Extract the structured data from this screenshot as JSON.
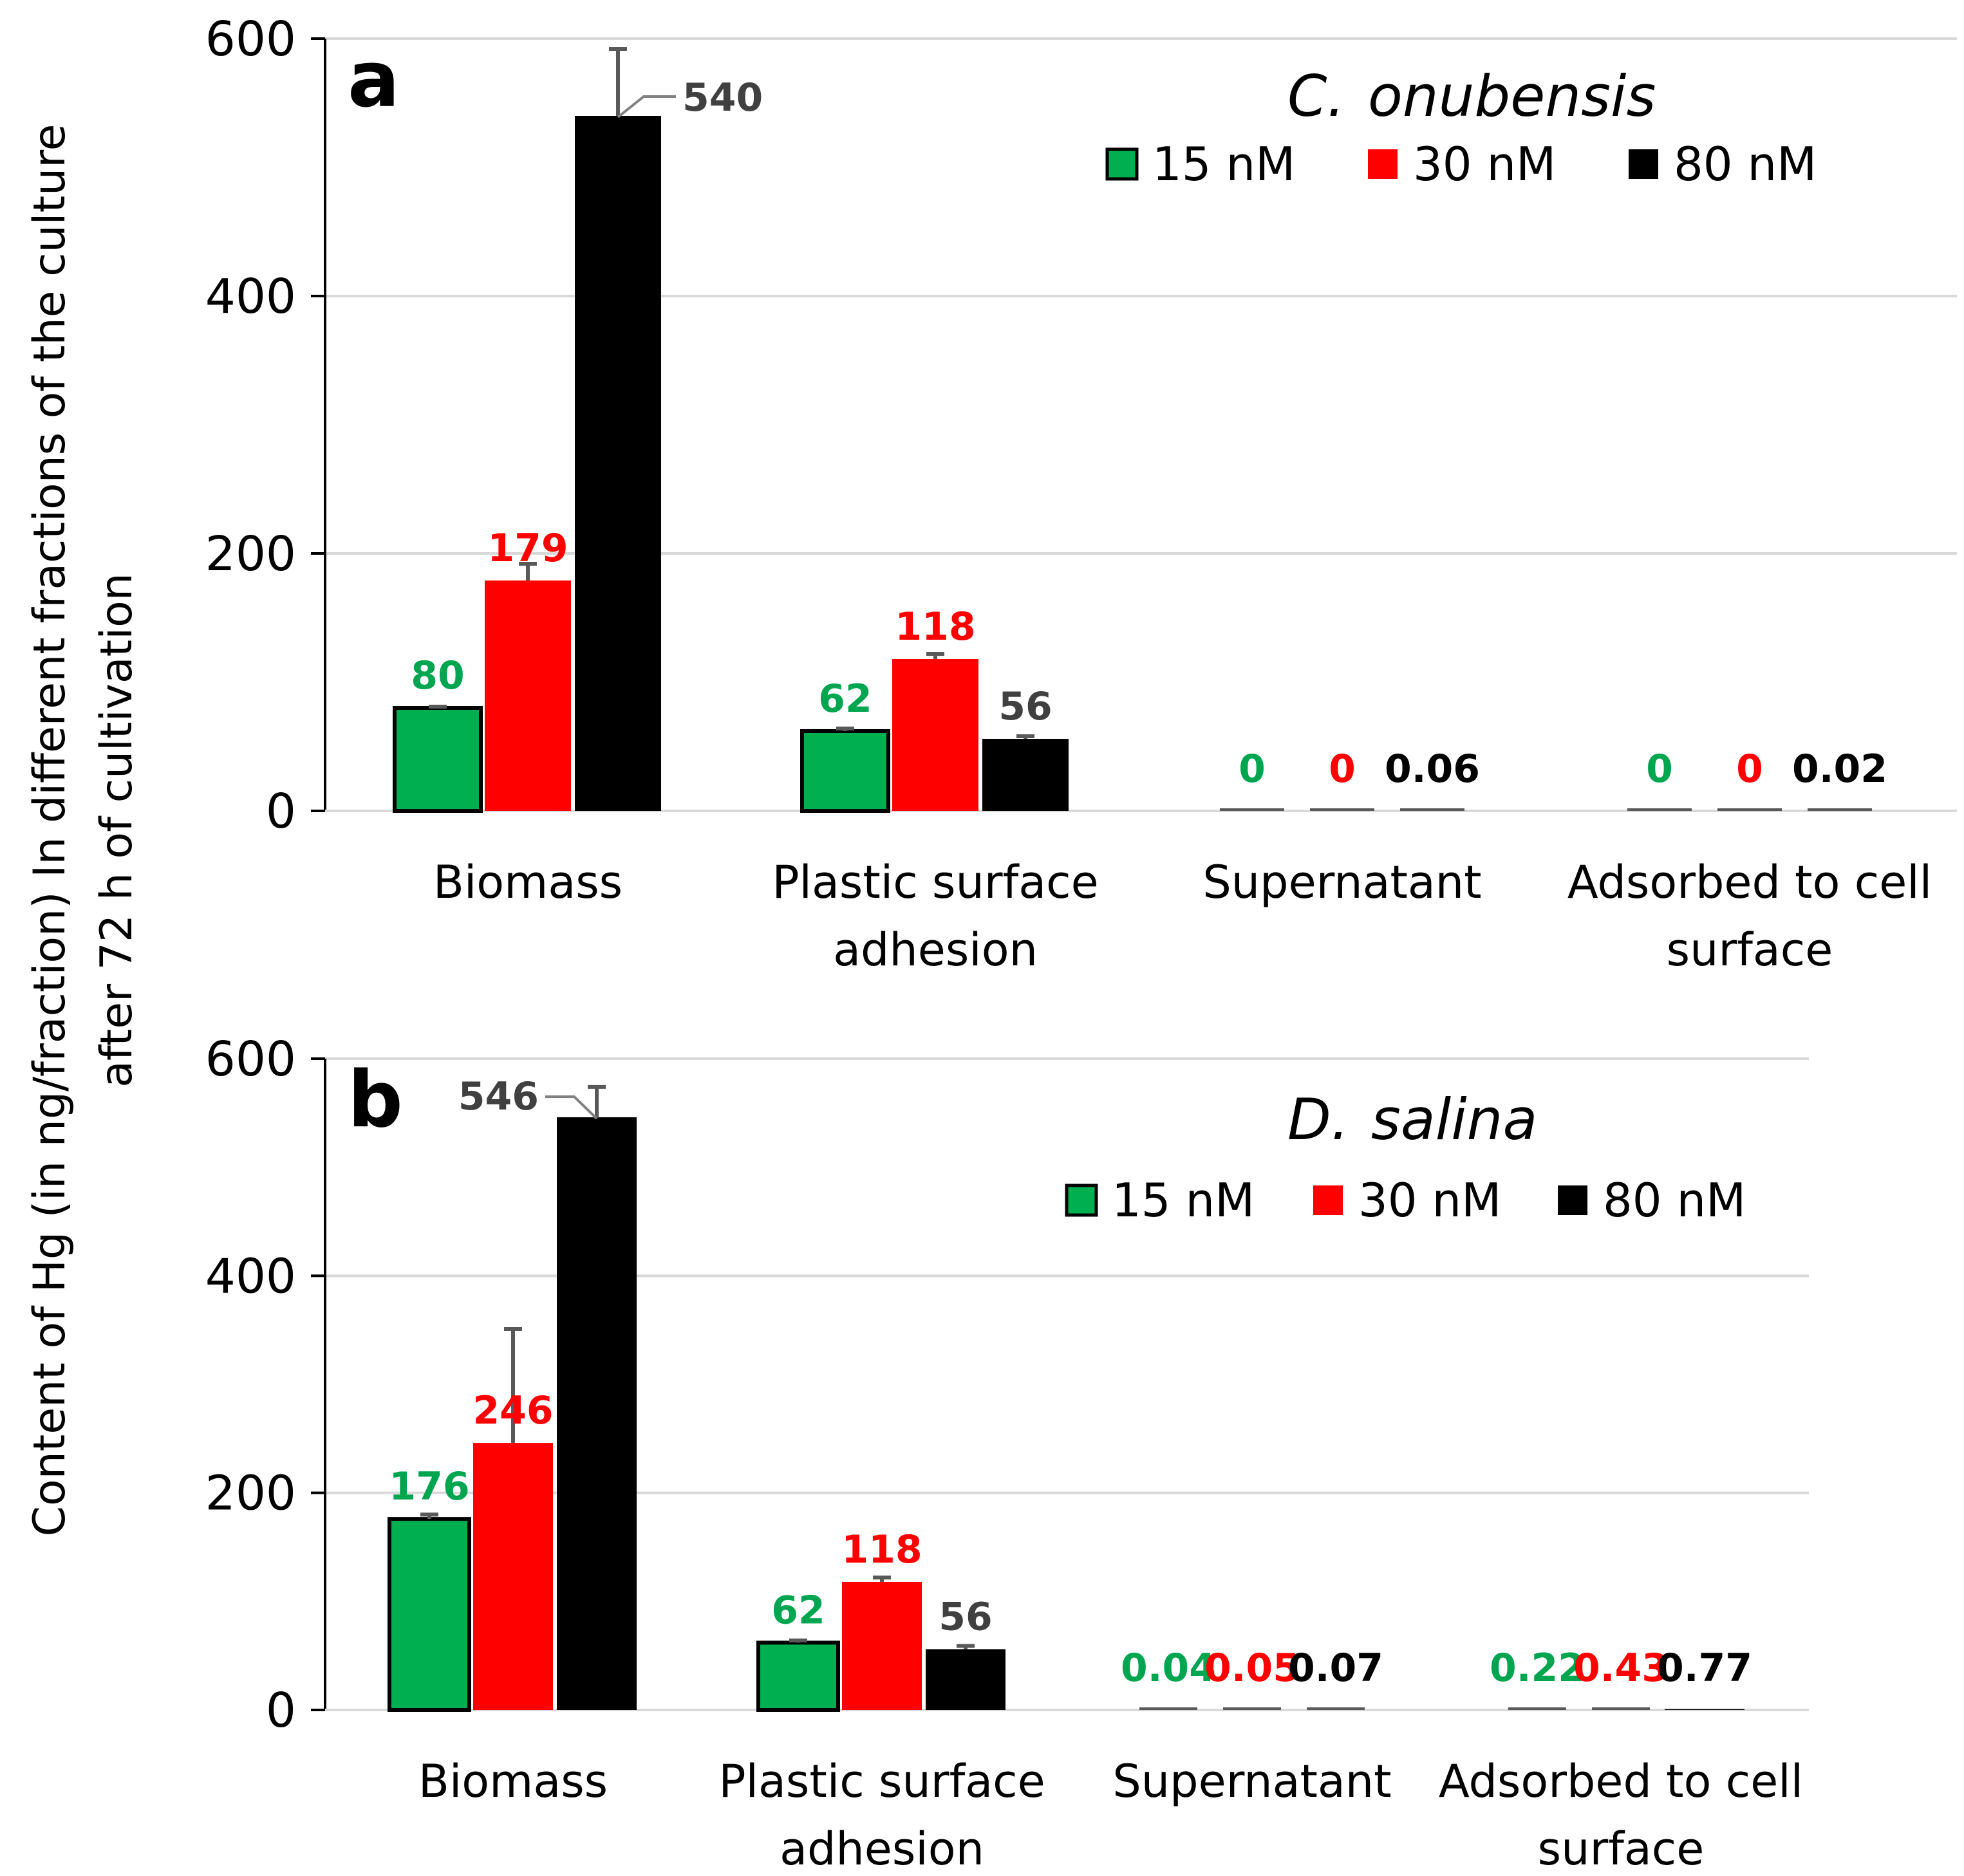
{
  "figure": {
    "ylabel_line1": "Content of Hg (in ng/fraction) In different fractions of the culture",
    "ylabel_line2": "after 72 h of cultivation"
  },
  "colors": {
    "green": "#00B050",
    "red": "#FF0000",
    "black": "#000000",
    "green_label": "#00A550",
    "dark_label": "#404040",
    "grid": "#D9D9D9"
  },
  "chart_data": [
    {
      "type": "bar",
      "panel": "a",
      "title": "C. onubensis",
      "title_genus": "C.",
      "title_species": "onubensis",
      "ylim": [
        0,
        600
      ],
      "yticks": [
        "0",
        "200",
        "400",
        "600"
      ],
      "categories": [
        [
          "Biomass"
        ],
        [
          "Plastic surface",
          "adhesion"
        ],
        [
          "Supernatant"
        ],
        [
          "Adsorbed to cell",
          "surface"
        ]
      ],
      "series": [
        {
          "name": "15 nM",
          "color": "green",
          "values": [
            80,
            62,
            0,
            0
          ],
          "labels": [
            "80",
            "62",
            "0",
            "0"
          ],
          "errors": [
            1,
            2,
            0,
            0
          ]
        },
        {
          "name": "30 nM",
          "color": "red",
          "values": [
            179,
            118,
            0,
            0
          ],
          "labels": [
            "179",
            "118",
            "0",
            "0"
          ],
          "errors": [
            13,
            4,
            0,
            0
          ]
        },
        {
          "name": "80 nM",
          "color": "black",
          "values": [
            540,
            56,
            0.06,
            0.02
          ],
          "labels": [
            "540",
            "56",
            "0.06",
            "0.02"
          ],
          "errors": [
            52,
            2,
            0,
            0
          ]
        }
      ]
    },
    {
      "type": "bar",
      "panel": "b",
      "title": "D. salina",
      "title_genus": "D.",
      "title_species": "salina",
      "ylim": [
        0,
        600
      ],
      "yticks": [
        "0",
        "200",
        "400",
        "600"
      ],
      "categories": [
        [
          "Biomass"
        ],
        [
          "Plastic surface",
          "adhesion"
        ],
        [
          "Supernatant"
        ],
        [
          "Adsorbed to cell",
          "surface"
        ]
      ],
      "series": [
        {
          "name": "15 nM",
          "color": "green",
          "values": [
            176,
            62,
            0.04,
            0.22
          ],
          "labels": [
            "176",
            "62",
            "0.04",
            "0.22"
          ],
          "errors": [
            4,
            2,
            0,
            0
          ]
        },
        {
          "name": "30 nM",
          "color": "red",
          "values": [
            246,
            118,
            0.05,
            0.43
          ],
          "labels": [
            "246",
            "118",
            "0.05",
            "0.43"
          ],
          "errors": [
            105,
            4,
            0,
            0
          ]
        },
        {
          "name": "80 nM",
          "color": "black",
          "values": [
            546,
            56,
            0.07,
            0.77
          ],
          "labels": [
            "546",
            "56",
            "0.07",
            "0.77"
          ],
          "errors": [
            28,
            3,
            0,
            0
          ]
        }
      ]
    }
  ]
}
